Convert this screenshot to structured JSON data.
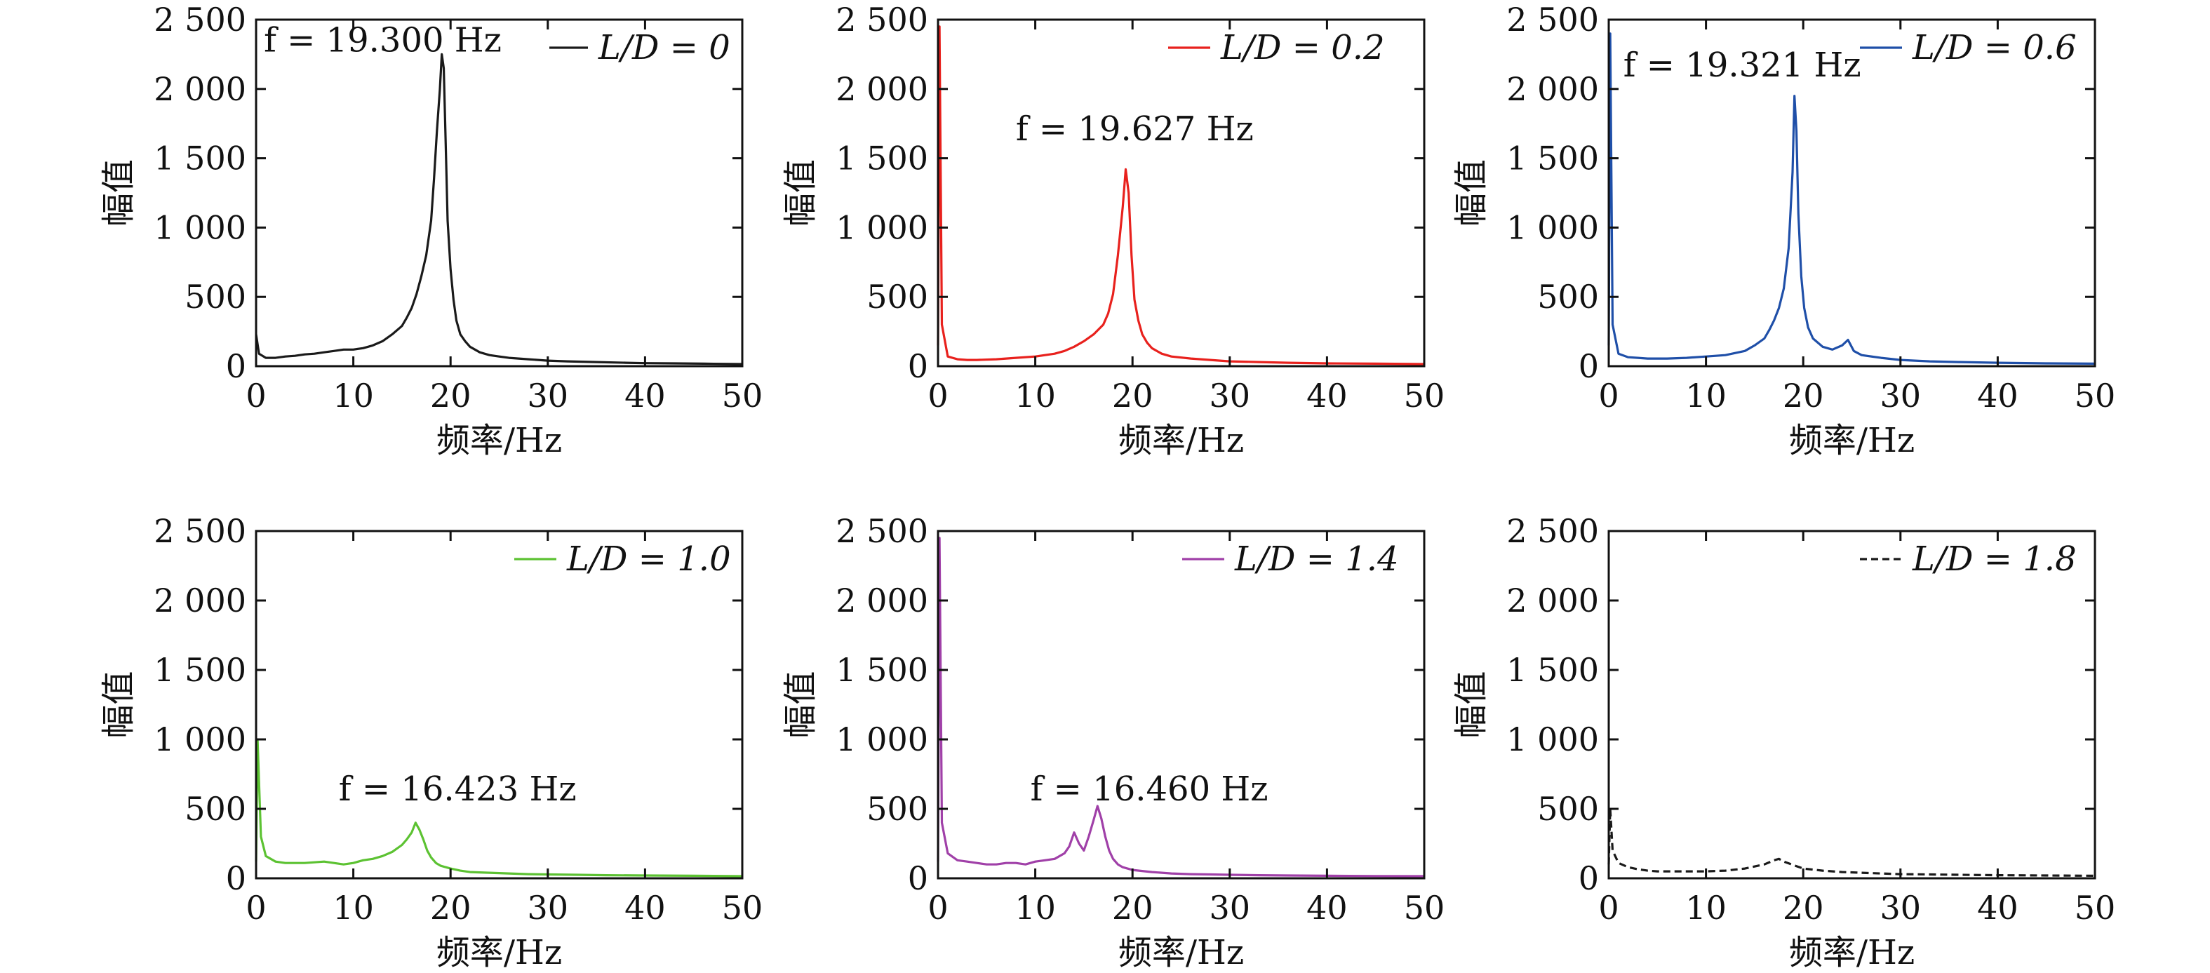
{
  "chart_data": [
    {
      "type": "line",
      "title": "",
      "xlabel": "频率/Hz",
      "ylabel": "幅值",
      "xlim": [
        0,
        50
      ],
      "ylim": [
        0,
        2500
      ],
      "xticks": [
        "0",
        "10",
        "20",
        "30",
        "40",
        "50"
      ],
      "yticks": [
        "0",
        "500",
        "1 000",
        "1 500",
        "2 000",
        "2 500"
      ],
      "legend": "top-right",
      "series": [
        {
          "name": "L/D = 0",
          "color": "#1a1a1a",
          "style": "solid",
          "x": [
            0,
            0.3,
            1,
            2,
            3,
            4,
            5,
            6,
            7,
            8,
            9,
            10,
            11,
            12,
            13,
            14,
            15,
            15.5,
            16,
            16.5,
            17,
            17.5,
            18,
            18.3,
            18.6,
            18.9,
            19.1,
            19.3,
            19.5,
            19.7,
            20,
            20.3,
            20.6,
            21,
            21.5,
            22,
            23,
            24,
            25,
            26,
            28,
            30,
            32,
            35,
            38,
            40,
            43,
            46,
            50
          ],
          "y": [
            230,
            90,
            60,
            60,
            70,
            75,
            85,
            90,
            100,
            110,
            120,
            120,
            130,
            150,
            180,
            230,
            290,
            350,
            420,
            520,
            650,
            800,
            1050,
            1350,
            1700,
            2000,
            2250,
            2150,
            1600,
            1050,
            700,
            480,
            330,
            230,
            180,
            140,
            100,
            80,
            70,
            60,
            50,
            40,
            35,
            30,
            25,
            22,
            20,
            18,
            15
          ]
        }
      ],
      "annotations": [
        {
          "text": "f = 19.300 Hz"
        }
      ]
    },
    {
      "type": "line",
      "title": "",
      "xlabel": "频率/Hz",
      "ylabel": "幅值",
      "xlim": [
        0,
        50
      ],
      "ylim": [
        0,
        2500
      ],
      "xticks": [
        "0",
        "10",
        "20",
        "30",
        "40",
        "50"
      ],
      "yticks": [
        "0",
        "500",
        "1 000",
        "1 500",
        "2 000",
        "2 500"
      ],
      "legend": "top-right",
      "series": [
        {
          "name": "L/D = 0.2",
          "color": "#e8211d",
          "style": "solid",
          "x": [
            0,
            0.15,
            0.4,
            1,
            2,
            3,
            4,
            6,
            8,
            10,
            12,
            13,
            14,
            15,
            16,
            17,
            17.5,
            18,
            18.5,
            19,
            19.3,
            19.6,
            19.9,
            20.2,
            20.6,
            21,
            21.5,
            22,
            23,
            24,
            26,
            28,
            30,
            33,
            36,
            40,
            45,
            50
          ],
          "y": [
            150,
            2450,
            300,
            70,
            50,
            45,
            45,
            50,
            60,
            70,
            90,
            110,
            140,
            180,
            230,
            300,
            380,
            520,
            800,
            1150,
            1420,
            1250,
            800,
            480,
            330,
            230,
            170,
            130,
            90,
            70,
            55,
            45,
            35,
            30,
            25,
            20,
            18,
            15
          ]
        }
      ],
      "annotations": [
        {
          "text": "f = 19.627 Hz"
        }
      ]
    },
    {
      "type": "line",
      "title": "",
      "xlabel": "频率/Hz",
      "ylabel": "幅值",
      "xlim": [
        0,
        50
      ],
      "ylim": [
        0,
        2500
      ],
      "xticks": [
        "0",
        "10",
        "20",
        "30",
        "40",
        "50"
      ],
      "yticks": [
        "0",
        "500",
        "1 000",
        "1 500",
        "2 000",
        "2 500"
      ],
      "legend": "top-right",
      "series": [
        {
          "name": "L/D = 0.6",
          "color": "#1f4fa8",
          "style": "solid",
          "x": [
            0,
            0.15,
            0.4,
            1,
            2,
            3,
            4,
            6,
            8,
            10,
            12,
            14,
            15,
            16,
            16.5,
            17,
            17.5,
            18,
            18.5,
            18.9,
            19.1,
            19.3,
            19.5,
            19.8,
            20.1,
            20.5,
            21,
            22,
            23,
            24,
            24.6,
            25.2,
            26,
            28,
            30,
            33,
            36,
            40,
            45,
            50
          ],
          "y": [
            150,
            2400,
            300,
            90,
            65,
            60,
            55,
            55,
            60,
            70,
            80,
            110,
            150,
            200,
            260,
            330,
            420,
            560,
            850,
            1400,
            1950,
            1700,
            1100,
            650,
            420,
            280,
            200,
            140,
            120,
            150,
            190,
            110,
            80,
            60,
            45,
            35,
            30,
            25,
            20,
            18
          ]
        }
      ],
      "annotations": [
        {
          "text": "f = 19.321 Hz"
        }
      ]
    },
    {
      "type": "line",
      "title": "",
      "xlabel": "频率/Hz",
      "ylabel": "幅值",
      "xlim": [
        0,
        50
      ],
      "ylim": [
        0,
        2500
      ],
      "xticks": [
        "0",
        "10",
        "20",
        "30",
        "40",
        "50"
      ],
      "yticks": [
        "0",
        "500",
        "1 000",
        "1 500",
        "2 000",
        "2 500"
      ],
      "legend": "top-right",
      "series": [
        {
          "name": "L/D = 1.0",
          "color": "#5cc232",
          "style": "solid",
          "x": [
            0,
            0.15,
            0.5,
            1,
            2,
            3,
            4,
            5,
            6,
            7,
            8,
            9,
            10,
            11,
            12,
            13,
            14,
            15,
            15.5,
            16,
            16.4,
            16.8,
            17.2,
            17.6,
            18,
            18.5,
            19,
            20,
            21,
            22,
            24,
            26,
            28,
            30,
            33,
            36,
            40,
            45,
            50
          ],
          "y": [
            120,
            1000,
            300,
            160,
            120,
            110,
            110,
            110,
            115,
            120,
            110,
            100,
            110,
            130,
            140,
            160,
            190,
            240,
            280,
            330,
            400,
            350,
            280,
            200,
            150,
            110,
            90,
            70,
            55,
            45,
            40,
            35,
            30,
            28,
            25,
            22,
            20,
            18,
            15
          ]
        }
      ],
      "annotations": [
        {
          "text": "f = 16.423 Hz"
        }
      ]
    },
    {
      "type": "line",
      "title": "",
      "xlabel": "频率/Hz",
      "ylabel": "幅值",
      "xlim": [
        0,
        50
      ],
      "ylim": [
        0,
        2500
      ],
      "xticks": [
        "0",
        "10",
        "20",
        "30",
        "40",
        "50"
      ],
      "yticks": [
        "0",
        "500",
        "1 000",
        "1 500",
        "2 000",
        "2 500"
      ],
      "legend": "top-right",
      "series": [
        {
          "name": "L/D = 1.4",
          "color": "#a040a8",
          "style": "solid",
          "x": [
            0,
            0.15,
            0.4,
            1,
            2,
            3,
            4,
            5,
            6,
            7,
            8,
            9,
            10,
            11,
            12,
            13,
            13.5,
            14,
            14.5,
            15,
            15.5,
            16,
            16.4,
            16.8,
            17.2,
            17.6,
            18,
            18.5,
            19,
            20,
            22,
            24,
            26,
            28,
            30,
            33,
            36,
            40,
            45,
            50
          ],
          "y": [
            120,
            2450,
            400,
            180,
            130,
            120,
            110,
            100,
            100,
            110,
            110,
            100,
            120,
            130,
            140,
            180,
            230,
            330,
            250,
            200,
            300,
            420,
            520,
            430,
            300,
            200,
            140,
            100,
            80,
            60,
            45,
            35,
            30,
            28,
            25,
            22,
            20,
            18,
            16,
            15
          ]
        }
      ],
      "annotations": [
        {
          "text": "f = 16.460 Hz"
        }
      ]
    },
    {
      "type": "line",
      "title": "",
      "xlabel": "频率/Hz",
      "ylabel": "幅值",
      "xlim": [
        0,
        50
      ],
      "ylim": [
        0,
        2500
      ],
      "xticks": [
        "0",
        "10",
        "20",
        "30",
        "40",
        "50"
      ],
      "yticks": [
        "0",
        "500",
        "1 000",
        "1 500",
        "2 000",
        "2 500"
      ],
      "legend": "top-right",
      "series": [
        {
          "name": "L/D = 1.8",
          "color": "#1a1a1a",
          "style": "dashed",
          "x": [
            0,
            0.15,
            0.4,
            1,
            2,
            3,
            4,
            5,
            6,
            8,
            10,
            12,
            14,
            16,
            17,
            17.5,
            18,
            19,
            20,
            22,
            24,
            26,
            28,
            30,
            33,
            36,
            40,
            45,
            50
          ],
          "y": [
            100,
            500,
            200,
            110,
            80,
            65,
            55,
            50,
            50,
            50,
            50,
            55,
            70,
            100,
            130,
            140,
            120,
            95,
            70,
            55,
            45,
            40,
            35,
            30,
            28,
            25,
            22,
            20,
            18
          ]
        }
      ],
      "annotations": []
    }
  ]
}
